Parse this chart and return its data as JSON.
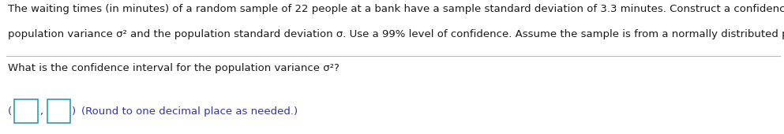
{
  "line1": "The waiting times (in minutes) of a random sample of 22 people at a bank have a sample standard deviation of 3.3 minutes. Construct a confidence interval for the",
  "line2": "population variance σ² and the population standard deviation σ. Use a 99% level of confidence. Assume the sample is from a normally distributed population.",
  "question_text": "What is the confidence interval for the population variance σ²?",
  "answer_hint": "(Round to one decimal place as needed.)",
  "bg_color": "#ffffff",
  "text_color": "#1a1a1a",
  "hint_color": "#3333aa",
  "box_color": "#2aa0a8",
  "separator_color": "#bbbbbb",
  "font_size_para": 9.5,
  "font_size_question": 9.5,
  "font_size_hint": 9.5
}
